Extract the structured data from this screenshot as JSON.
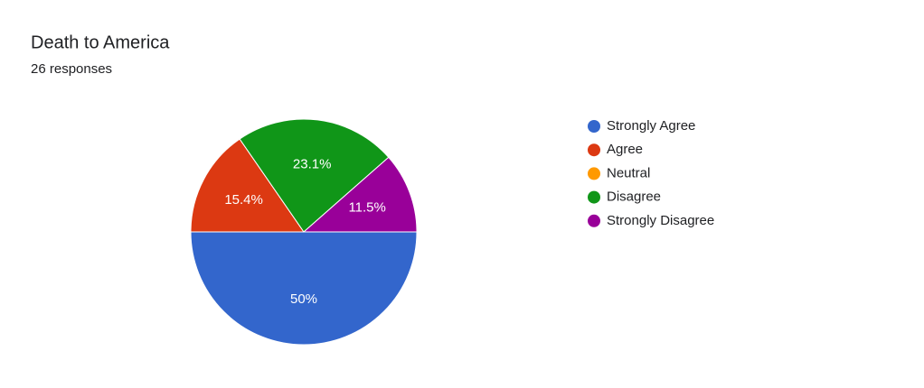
{
  "chart_data": {
    "type": "pie",
    "title": "Death to America",
    "subtitle": "26 responses",
    "categories": [
      "Strongly Agree",
      "Agree",
      "Neutral",
      "Disagree",
      "Strongly Disagree"
    ],
    "values": [
      50,
      15.4,
      0,
      23.1,
      11.5
    ],
    "value_labels": [
      "50%",
      "15.4%",
      null,
      "23.1%",
      "11.5%"
    ],
    "colors": [
      "#3366cc",
      "#dc3912",
      "#ff9900",
      "#109618",
      "#990099"
    ],
    "legend": "right"
  }
}
